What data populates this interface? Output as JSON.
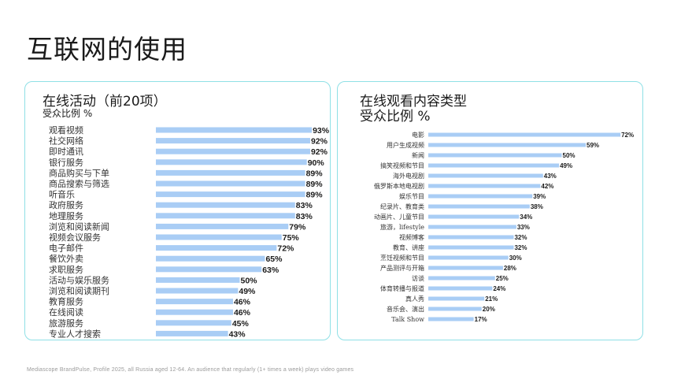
{
  "page": {
    "title": "互联网的使用",
    "footnote": "Mediascope BrandPulse, Profile 2025, all Russia aged 12-64. An audience that regularly (1+ times a week) plays video games"
  },
  "colors": {
    "bar": "#a9cdf5",
    "panel_border": "#8fe0e6"
  },
  "chart_data": [
    {
      "type": "bar",
      "orientation": "horizontal",
      "title": "在线活动（前20项）",
      "subtitle": "受众比例 %",
      "categories": [
        "观看视频",
        "社交网络",
        "即时通讯",
        "银行服务",
        "商品购买与下单",
        "商品搜索与筛选",
        "听音乐",
        "政府服务",
        "地理服务",
        "浏览和阅读新闻",
        "视频会议服务",
        "电子邮件",
        "餐饮外卖",
        "求职服务",
        "活动与娱乐服务",
        "浏览和阅读期刊",
        "教育服务",
        "在线阅读",
        "旅游服务",
        "专业人才搜索"
      ],
      "values": [
        93,
        92,
        92,
        90,
        89,
        89,
        89,
        83,
        83,
        79,
        75,
        72,
        65,
        63,
        50,
        49,
        46,
        46,
        45,
        43
      ],
      "value_labels": [
        "93%",
        "92%",
        "92%",
        "90%",
        "89%",
        "89%",
        "89%",
        "83%",
        "83%",
        "79%",
        "75%",
        "72%",
        "65%",
        "63%",
        "50%",
        "49%",
        "46%",
        "46%",
        "45%",
        "43%"
      ],
      "xlim": [
        0,
        100
      ],
      "grid": false,
      "legend": "none"
    },
    {
      "type": "bar",
      "orientation": "horizontal",
      "title": "在线观看内容类型",
      "subtitle": "受众比例 %",
      "categories": [
        "电影",
        "用户生成视频",
        "新闻",
        "搞笑视频和节目",
        "海外电视剧",
        "俄罗斯本地电视剧",
        "娱乐节目",
        "纪录片、教育类",
        "动画片、儿童节目",
        "旅游，lifestyle",
        "视频博客",
        "教育、讲座",
        "烹饪视频和节目",
        "产品测评与开箱",
        "访谈",
        "体育转播与报道",
        "真人秀",
        "音乐会、演出",
        "Talk Show"
      ],
      "values": [
        72,
        59,
        50,
        49,
        43,
        42,
        39,
        38,
        34,
        33,
        32,
        32,
        30,
        28,
        25,
        24,
        21,
        20,
        17
      ],
      "value_labels": [
        "72%",
        "59%",
        "50%",
        "49%",
        "43%",
        "42%",
        "39%",
        "38%",
        "34%",
        "33%",
        "32%",
        "32%",
        "30%",
        "28%",
        "25%",
        "24%",
        "21%",
        "20%",
        "17%"
      ],
      "xlim": [
        0,
        100
      ],
      "grid": false,
      "legend": "none"
    }
  ]
}
